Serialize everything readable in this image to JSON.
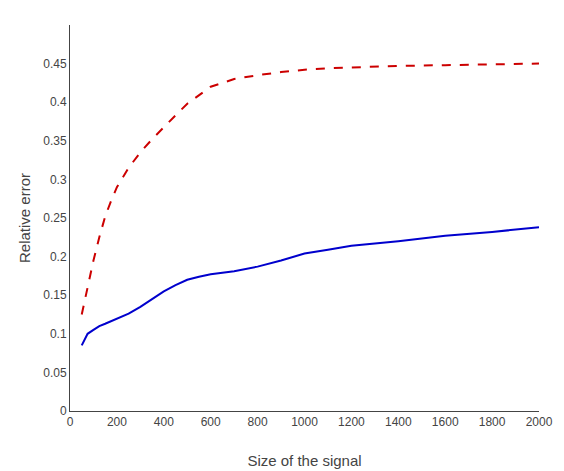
{
  "chart_data": {
    "type": "line",
    "xlabel": "Size of the signal",
    "ylabel": "Relative error",
    "xlim": [
      0,
      2000
    ],
    "ylim": [
      0,
      0.5
    ],
    "xticks": [
      0,
      200,
      400,
      600,
      800,
      1000,
      1200,
      1400,
      1600,
      1800,
      2000
    ],
    "yticks": [
      0,
      0.05,
      0.1,
      0.15,
      0.2,
      0.25,
      0.3,
      0.35,
      0.4,
      0.45
    ],
    "grid": false,
    "series": [
      {
        "color": "#0000cd",
        "line_style": "solid",
        "x": [
          50,
          75,
          100,
          125,
          150,
          175,
          200,
          250,
          300,
          350,
          400,
          450,
          500,
          550,
          600,
          700,
          800,
          900,
          1000,
          1100,
          1200,
          1400,
          1600,
          1800,
          2000
        ],
        "values": [
          0.085,
          0.1,
          0.105,
          0.11,
          0.113,
          0.116,
          0.119,
          0.126,
          0.135,
          0.145,
          0.155,
          0.163,
          0.17,
          0.174,
          0.177,
          0.181,
          0.187,
          0.195,
          0.204,
          0.209,
          0.214,
          0.22,
          0.227,
          0.232,
          0.238
        ]
      },
      {
        "color": "#cc0000",
        "line_style": "dashed",
        "x": [
          50,
          75,
          100,
          125,
          150,
          175,
          200,
          250,
          300,
          350,
          400,
          450,
          500,
          600,
          700,
          800,
          900,
          1000,
          1100,
          1200,
          1400,
          1600,
          1800,
          2000
        ],
        "values": [
          0.125,
          0.16,
          0.195,
          0.225,
          0.252,
          0.272,
          0.29,
          0.315,
          0.335,
          0.352,
          0.368,
          0.383,
          0.398,
          0.42,
          0.43,
          0.435,
          0.439,
          0.442,
          0.444,
          0.445,
          0.447,
          0.448,
          0.449,
          0.45
        ]
      }
    ]
  }
}
